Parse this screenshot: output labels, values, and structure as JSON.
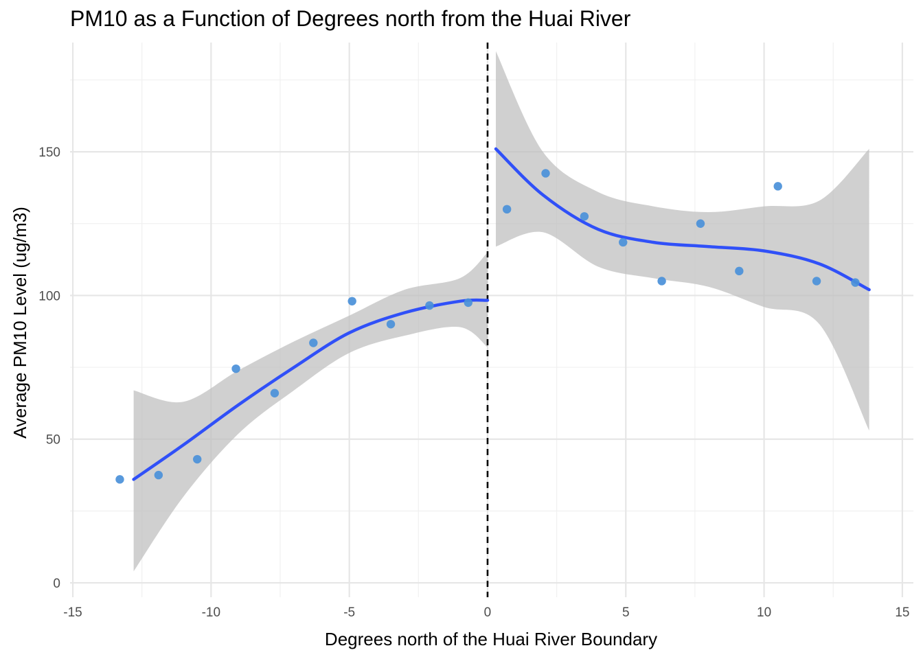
{
  "chart_data": {
    "type": "scatter",
    "title": "PM10 as a Function of Degrees north from the Huai River",
    "xlabel": "Degrees north of the Huai River Boundary",
    "ylabel": "Average PM10 Level (ug/m3)",
    "xlim": [
      -15.1,
      15.4
    ],
    "ylim": [
      -5,
      188
    ],
    "x_ticks": [
      -15,
      -10,
      -5,
      0,
      5,
      10,
      15
    ],
    "x_tick_labels": [
      "-15",
      "-10",
      "-5",
      "0",
      "5",
      "10",
      "15"
    ],
    "y_ticks": [
      0,
      50,
      100,
      150
    ],
    "y_tick_labels": [
      "0",
      "50",
      "100",
      "150"
    ],
    "grid": true,
    "cutoff_line": {
      "x": 0,
      "style": "dashed",
      "color": "#000000"
    },
    "points": [
      {
        "x": -13.3,
        "y": 36
      },
      {
        "x": -11.9,
        "y": 37.5
      },
      {
        "x": -10.5,
        "y": 43
      },
      {
        "x": -9.1,
        "y": 74.5
      },
      {
        "x": -7.7,
        "y": 66
      },
      {
        "x": -6.3,
        "y": 83.5
      },
      {
        "x": -4.9,
        "y": 98
      },
      {
        "x": -3.5,
        "y": 90
      },
      {
        "x": -2.1,
        "y": 96.5
      },
      {
        "x": -0.7,
        "y": 97.5
      },
      {
        "x": 0.7,
        "y": 130
      },
      {
        "x": 2.1,
        "y": 142.5
      },
      {
        "x": 3.5,
        "y": 127.5
      },
      {
        "x": 4.9,
        "y": 118.5
      },
      {
        "x": 6.3,
        "y": 105
      },
      {
        "x": 7.7,
        "y": 125
      },
      {
        "x": 9.1,
        "y": 108.5
      },
      {
        "x": 10.5,
        "y": 138
      },
      {
        "x": 11.9,
        "y": 105
      },
      {
        "x": 13.3,
        "y": 104.5
      }
    ],
    "fit_left": {
      "x": [
        -12.8,
        -11,
        -9,
        -7,
        -5,
        -3,
        -1,
        0
      ],
      "y": [
        36,
        48,
        62,
        75,
        87,
        94,
        98,
        98.3
      ],
      "lower": [
        4,
        30,
        52,
        67,
        80,
        86,
        89,
        82
      ],
      "upper": [
        67,
        63,
        74,
        84,
        93,
        102,
        106,
        115
      ]
    },
    "fit_right": {
      "x": [
        0.3,
        2,
        4,
        6,
        8,
        10,
        12,
        13.8
      ],
      "y": [
        151,
        135,
        123,
        118.5,
        117,
        115.5,
        111,
        102
      ],
      "lower": [
        117,
        122,
        110,
        106,
        103,
        96,
        90,
        53
      ],
      "upper": [
        185,
        150,
        136,
        131,
        129,
        131,
        133,
        151
      ]
    },
    "colors": {
      "points": "#4a90d9",
      "fit_line": "#3050f8",
      "ribbon": "#bebebe",
      "cutoff": "#000000"
    }
  }
}
